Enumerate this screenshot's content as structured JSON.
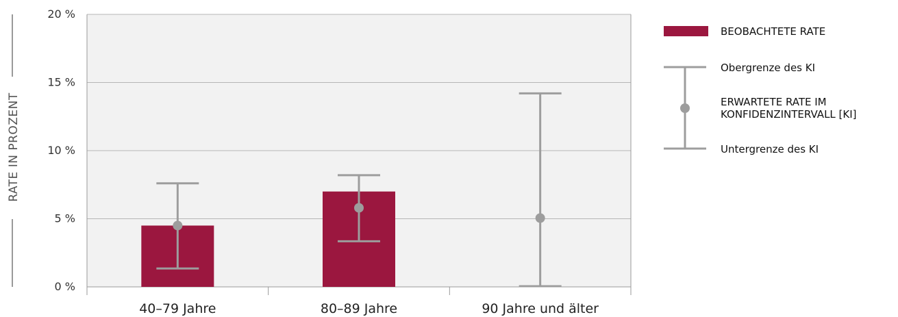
{
  "chart_data": {
    "type": "bar",
    "ylabel": "RATE IN PROZENT",
    "ylim": [
      0,
      20
    ],
    "yticks": [
      0,
      5,
      10,
      15,
      20
    ],
    "ytick_labels": [
      "0 %",
      "5 %",
      "10 %",
      "15 %",
      "20 %"
    ],
    "grid": true,
    "legend_position": "right",
    "categories": [
      "40–79 Jahre",
      "80–89 Jahre",
      "90 Jahre und älter"
    ],
    "series": [
      {
        "name": "BEOBACHTETE RATE",
        "values": [
          4.5,
          7.0,
          0
        ]
      },
      {
        "name": "ERWARTETE RATE IM KONFIDENZINTERVALL [KI]",
        "values": [
          4.5,
          5.8,
          5.05
        ]
      }
    ],
    "ci_upper": [
      7.6,
      8.2,
      14.2
    ],
    "ci_lower": [
      1.35,
      3.35,
      0.05
    ],
    "legend": {
      "bar": "BEOBACHTETE RATE",
      "upper": "Obergrenze des KI",
      "expected_line1": "ERWARTETE RATE IM",
      "expected_line2": "KONFIDENZINTERVALL [KI]",
      "lower": "Untergrenze des KI"
    },
    "colors": {
      "bar": "#9b173f",
      "errorbar": "#9d9d9d",
      "plot_bg": "#f2f2f2",
      "grid": "#b5b5b5",
      "axis": "#9a9a9a"
    }
  }
}
